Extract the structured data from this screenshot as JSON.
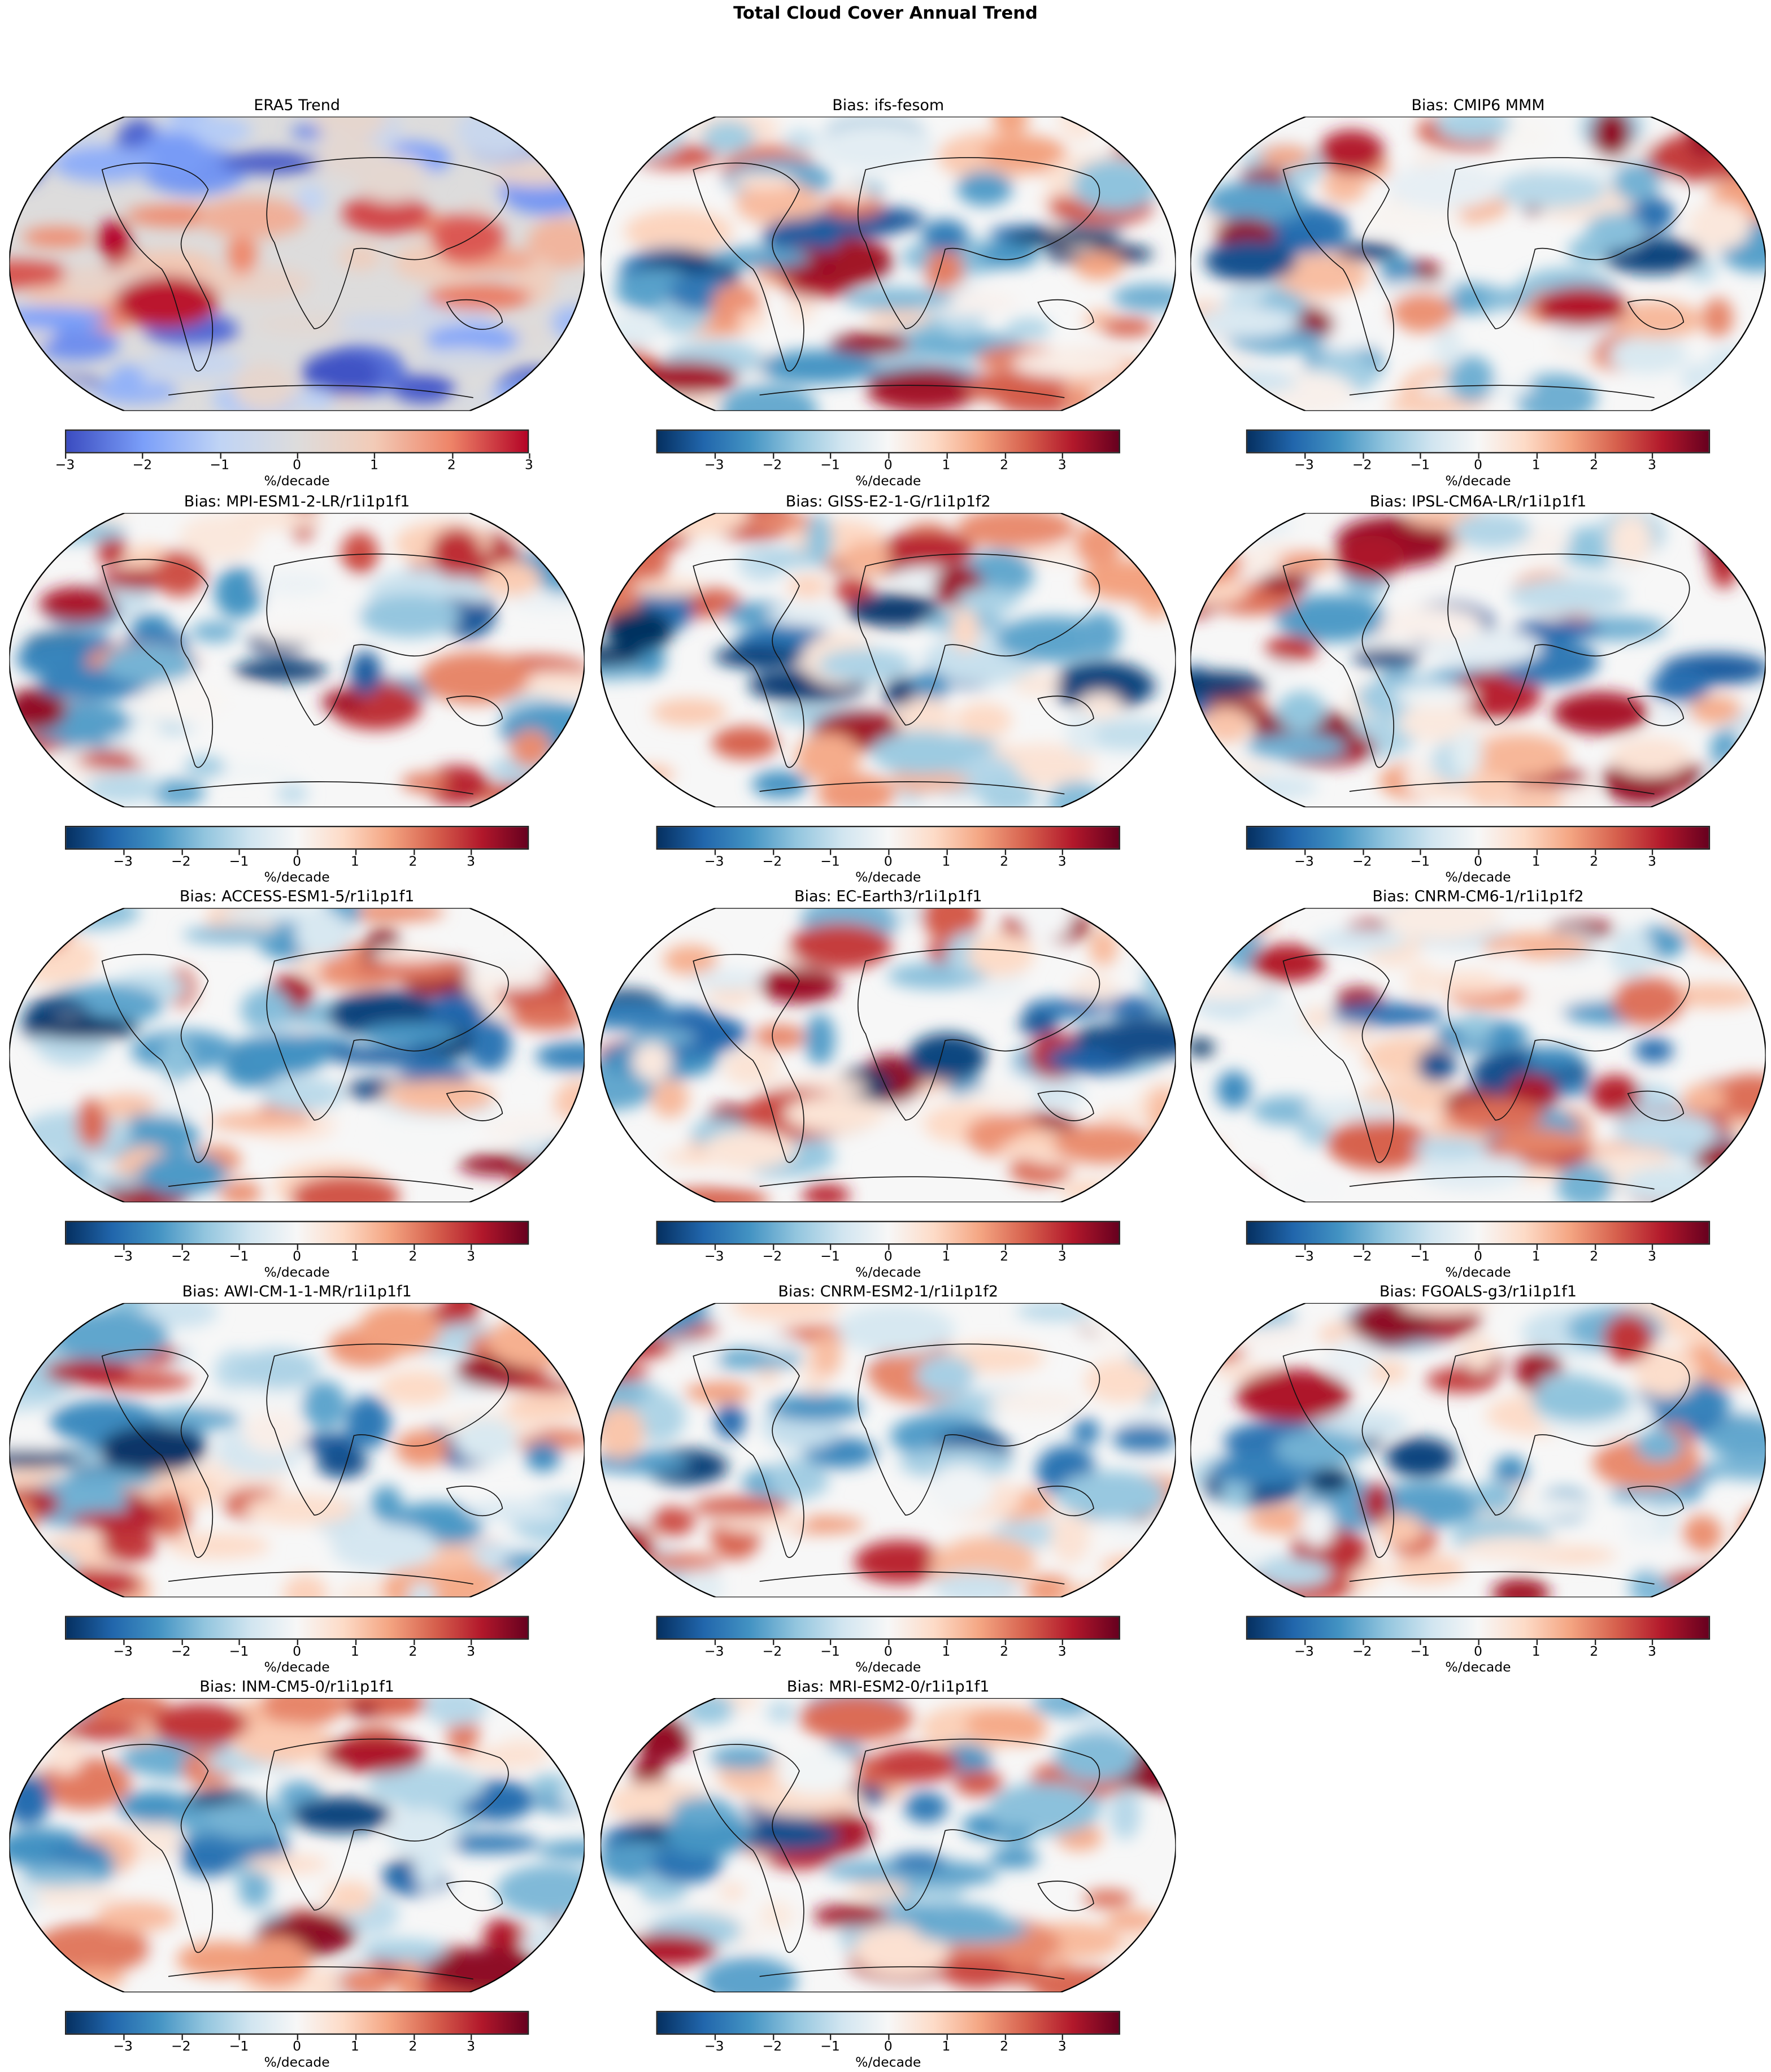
{
  "suptitle": "Total Cloud Cover Annual Trend",
  "colorbar_label": "%/decade",
  "colormaps": {
    "trend": {
      "name": "coolwarm",
      "stops": [
        "#3b4cc0",
        "#7b9ff9",
        "#c0d4f5",
        "#dddcdc",
        "#f2cbb7",
        "#ee8468",
        "#b40426"
      ]
    },
    "bias": {
      "name": "RdBu_r",
      "stops": [
        "#053061",
        "#2166ac",
        "#4393c3",
        "#92c5de",
        "#d1e5f0",
        "#f7f7f7",
        "#fddbc7",
        "#f4a582",
        "#d6604d",
        "#b2182b",
        "#67001f"
      ]
    }
  },
  "chart_data": [
    {
      "type": "heatmap",
      "title": "ERA5 Trend",
      "cmap": "trend",
      "colorbar": {
        "range": [
          -3,
          3
        ],
        "ticks": [
          "−3",
          "−2",
          "−1",
          "0",
          "1",
          "2",
          "3"
        ],
        "tick_values": [
          -3,
          -2,
          -1,
          0,
          1,
          2,
          3
        ],
        "label": "%/decade"
      }
    },
    {
      "type": "heatmap",
      "title": "Bias: ifs-fesom",
      "cmap": "bias",
      "colorbar": {
        "range": [
          -4,
          4
        ],
        "ticks": [
          "−3",
          "−2",
          "−1",
          "0",
          "1",
          "2",
          "3"
        ],
        "tick_values": [
          -3,
          -2,
          -1,
          0,
          1,
          2,
          3
        ],
        "label": "%/decade"
      }
    },
    {
      "type": "heatmap",
      "title": "Bias: CMIP6 MMM",
      "cmap": "bias",
      "colorbar": {
        "range": [
          -4,
          4
        ],
        "ticks": [
          "−3",
          "−2",
          "−1",
          "0",
          "1",
          "2",
          "3"
        ],
        "tick_values": [
          -3,
          -2,
          -1,
          0,
          1,
          2,
          3
        ],
        "label": "%/decade"
      }
    },
    {
      "type": "heatmap",
      "title": "Bias: MPI-ESM1-2-LR/r1i1p1f1",
      "cmap": "bias",
      "colorbar": {
        "range": [
          -4,
          4
        ],
        "ticks": [
          "−3",
          "−2",
          "−1",
          "0",
          "1",
          "2",
          "3"
        ],
        "tick_values": [
          -3,
          -2,
          -1,
          0,
          1,
          2,
          3
        ],
        "label": "%/decade"
      }
    },
    {
      "type": "heatmap",
      "title": "Bias: GISS-E2-1-G/r1i1p1f2",
      "cmap": "bias",
      "colorbar": {
        "range": [
          -4,
          4
        ],
        "ticks": [
          "−3",
          "−2",
          "−1",
          "0",
          "1",
          "2",
          "3"
        ],
        "tick_values": [
          -3,
          -2,
          -1,
          0,
          1,
          2,
          3
        ],
        "label": "%/decade"
      }
    },
    {
      "type": "heatmap",
      "title": "Bias: IPSL-CM6A-LR/r1i1p1f1",
      "cmap": "bias",
      "colorbar": {
        "range": [
          -4,
          4
        ],
        "ticks": [
          "−3",
          "−2",
          "−1",
          "0",
          "1",
          "2",
          "3"
        ],
        "tick_values": [
          -3,
          -2,
          -1,
          0,
          1,
          2,
          3
        ],
        "label": "%/decade"
      }
    },
    {
      "type": "heatmap",
      "title": "Bias: ACCESS-ESM1-5/r1i1p1f1",
      "cmap": "bias",
      "colorbar": {
        "range": [
          -4,
          4
        ],
        "ticks": [
          "−3",
          "−2",
          "−1",
          "0",
          "1",
          "2",
          "3"
        ],
        "tick_values": [
          -3,
          -2,
          -1,
          0,
          1,
          2,
          3
        ],
        "label": "%/decade"
      }
    },
    {
      "type": "heatmap",
      "title": "Bias: EC-Earth3/r1i1p1f1",
      "cmap": "bias",
      "colorbar": {
        "range": [
          -4,
          4
        ],
        "ticks": [
          "−3",
          "−2",
          "−1",
          "0",
          "1",
          "2",
          "3"
        ],
        "tick_values": [
          -3,
          -2,
          -1,
          0,
          1,
          2,
          3
        ],
        "label": "%/decade"
      }
    },
    {
      "type": "heatmap",
      "title": "Bias: CNRM-CM6-1/r1i1p1f2",
      "cmap": "bias",
      "colorbar": {
        "range": [
          -4,
          4
        ],
        "ticks": [
          "−3",
          "−2",
          "−1",
          "0",
          "1",
          "2",
          "3"
        ],
        "tick_values": [
          -3,
          -2,
          -1,
          0,
          1,
          2,
          3
        ],
        "label": "%/decade"
      }
    },
    {
      "type": "heatmap",
      "title": "Bias: AWI-CM-1-1-MR/r1i1p1f1",
      "cmap": "bias",
      "colorbar": {
        "range": [
          -4,
          4
        ],
        "ticks": [
          "−3",
          "−2",
          "−1",
          "0",
          "1",
          "2",
          "3"
        ],
        "tick_values": [
          -3,
          -2,
          -1,
          0,
          1,
          2,
          3
        ],
        "label": "%/decade"
      }
    },
    {
      "type": "heatmap",
      "title": "Bias: CNRM-ESM2-1/r1i1p1f2",
      "cmap": "bias",
      "colorbar": {
        "range": [
          -4,
          4
        ],
        "ticks": [
          "−3",
          "−2",
          "−1",
          "0",
          "1",
          "2",
          "3"
        ],
        "tick_values": [
          -3,
          -2,
          -1,
          0,
          1,
          2,
          3
        ],
        "label": "%/decade"
      }
    },
    {
      "type": "heatmap",
      "title": "Bias: FGOALS-g3/r1i1p1f1",
      "cmap": "bias",
      "colorbar": {
        "range": [
          -4,
          4
        ],
        "ticks": [
          "−3",
          "−2",
          "−1",
          "0",
          "1",
          "2",
          "3"
        ],
        "tick_values": [
          -3,
          -2,
          -1,
          0,
          1,
          2,
          3
        ],
        "label": "%/decade"
      }
    },
    {
      "type": "heatmap",
      "title": "Bias: INM-CM5-0/r1i1p1f1",
      "cmap": "bias",
      "colorbar": {
        "range": [
          -4,
          4
        ],
        "ticks": [
          "−3",
          "−2",
          "−1",
          "0",
          "1",
          "2",
          "3"
        ],
        "tick_values": [
          -3,
          -2,
          -1,
          0,
          1,
          2,
          3
        ],
        "label": "%/decade"
      }
    },
    {
      "type": "heatmap",
      "title": "Bias: MRI-ESM2-0/r1i1p1f1",
      "cmap": "bias",
      "colorbar": {
        "range": [
          -4,
          4
        ],
        "ticks": [
          "−3",
          "−2",
          "−1",
          "0",
          "1",
          "2",
          "3"
        ],
        "tick_values": [
          -3,
          -2,
          -1,
          0,
          1,
          2,
          3
        ],
        "label": "%/decade"
      }
    }
  ]
}
